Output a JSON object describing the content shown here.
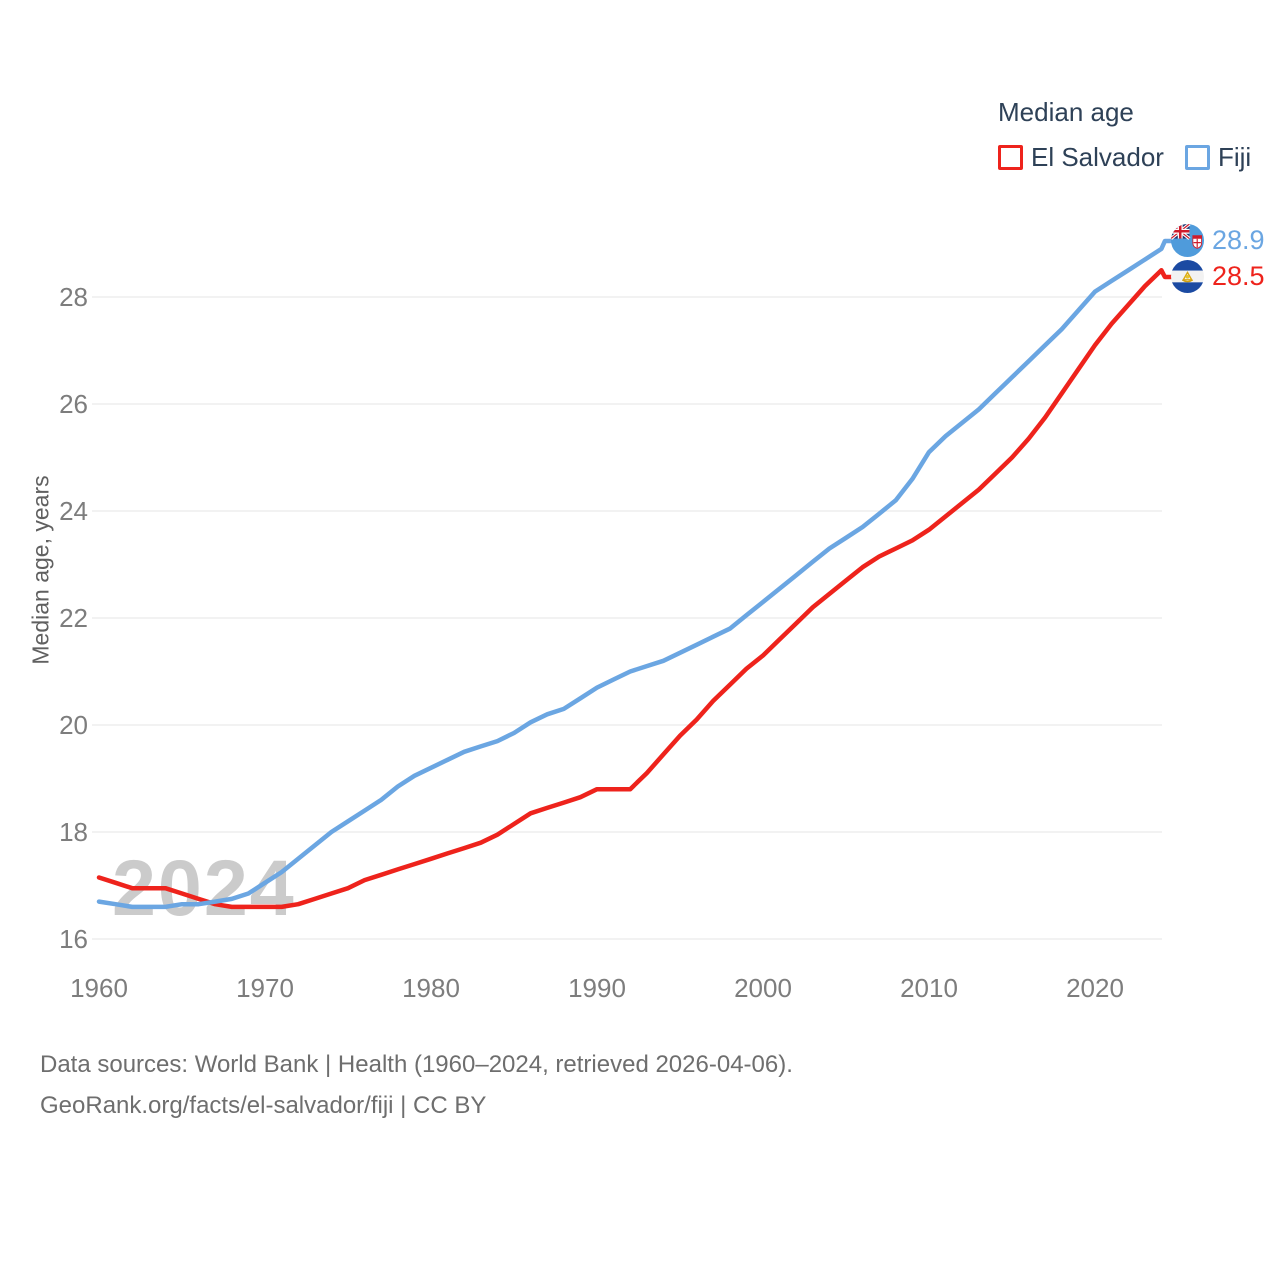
{
  "legend": {
    "title": "Median age",
    "items": [
      {
        "label": "El Salvador"
      },
      {
        "label": "Fiji"
      }
    ]
  },
  "y_axis": {
    "title": "Median age, years",
    "ticks": [
      16,
      18,
      20,
      22,
      24,
      26,
      28
    ]
  },
  "x_axis": {
    "ticks": [
      1960,
      1970,
      1980,
      1990,
      2000,
      2010,
      2020
    ]
  },
  "watermark": "2024",
  "end_labels": {
    "fiji": "28.9",
    "el_salvador": "28.5"
  },
  "footer": {
    "line1": "Data sources: World Bank | Health (1960–2024, retrieved 2026-04-06).",
    "line2": "GeoRank.org/facts/el-salvador/fiji | CC BY"
  },
  "chart_data": {
    "type": "line",
    "title": "Median age",
    "xlabel": "",
    "ylabel": "Median age, years",
    "xlim": [
      1960,
      2024
    ],
    "ylim": [
      16,
      29.3
    ],
    "grid": "horizontal",
    "legend_position": "top-right",
    "x": [
      1960,
      1961,
      1962,
      1963,
      1964,
      1965,
      1966,
      1967,
      1968,
      1969,
      1970,
      1971,
      1972,
      1973,
      1974,
      1975,
      1976,
      1977,
      1978,
      1979,
      1980,
      1981,
      1982,
      1983,
      1984,
      1985,
      1986,
      1987,
      1988,
      1989,
      1990,
      1991,
      1992,
      1993,
      1994,
      1995,
      1996,
      1997,
      1998,
      1999,
      2000,
      2001,
      2002,
      2003,
      2004,
      2005,
      2006,
      2007,
      2008,
      2009,
      2010,
      2011,
      2012,
      2013,
      2014,
      2015,
      2016,
      2017,
      2018,
      2019,
      2020,
      2021,
      2022,
      2023,
      2024
    ],
    "series": [
      {
        "name": "El Salvador",
        "color": "#ee231c",
        "end_label": "28.5",
        "final_value": 28.5,
        "values": [
          17.15,
          17.05,
          16.95,
          16.95,
          16.95,
          16.85,
          16.75,
          16.65,
          16.6,
          16.6,
          16.6,
          16.6,
          16.65,
          16.75,
          16.85,
          16.95,
          17.1,
          17.2,
          17.3,
          17.4,
          17.5,
          17.6,
          17.7,
          17.8,
          17.95,
          18.15,
          18.35,
          18.45,
          18.55,
          18.65,
          18.8,
          18.8,
          18.8,
          19.1,
          19.45,
          19.8,
          20.1,
          20.45,
          20.75,
          21.05,
          21.3,
          21.6,
          21.9,
          22.2,
          22.45,
          22.7,
          22.95,
          23.15,
          23.3,
          23.45,
          23.65,
          23.9,
          24.15,
          24.4,
          24.7,
          25.0,
          25.35,
          25.75,
          26.2,
          26.65,
          27.1,
          27.5,
          27.85,
          28.2,
          28.5
        ]
      },
      {
        "name": "Fiji",
        "color": "#6ba6e2",
        "end_label": "28.9",
        "final_value": 28.9,
        "values": [
          16.7,
          16.65,
          16.6,
          16.6,
          16.6,
          16.65,
          16.65,
          16.7,
          16.75,
          16.85,
          17.05,
          17.25,
          17.5,
          17.75,
          18.0,
          18.2,
          18.4,
          18.6,
          18.85,
          19.05,
          19.2,
          19.35,
          19.5,
          19.6,
          19.7,
          19.85,
          20.05,
          20.2,
          20.3,
          20.5,
          20.7,
          20.85,
          21.0,
          21.1,
          21.2,
          21.35,
          21.5,
          21.65,
          21.8,
          22.05,
          22.3,
          22.55,
          22.8,
          23.05,
          23.3,
          23.5,
          23.7,
          23.95,
          24.2,
          24.6,
          25.1,
          25.4,
          25.65,
          25.9,
          26.2,
          26.5,
          26.8,
          27.1,
          27.4,
          27.75,
          28.1,
          28.3,
          28.5,
          28.7,
          28.9
        ]
      }
    ]
  }
}
